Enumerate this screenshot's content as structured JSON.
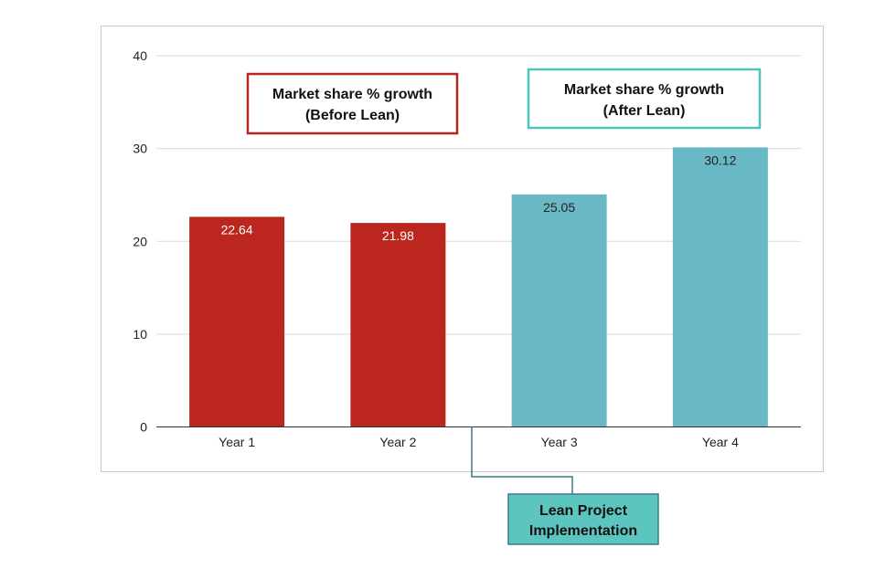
{
  "chart_data": {
    "type": "bar",
    "title": "",
    "xlabel": "",
    "ylabel": "",
    "ylim": [
      0,
      40
    ],
    "yticks": [
      0,
      10,
      20,
      30,
      40
    ],
    "categories": [
      "Year 1",
      "Year 2",
      "Year 3",
      "Year 4"
    ],
    "values": [
      22.64,
      21.98,
      25.05,
      30.12
    ],
    "value_labels": [
      "22.64",
      "21.98",
      "25.05",
      "30.12"
    ],
    "grid": true,
    "annotations": {
      "before": {
        "line1": "Market share % growth",
        "line2": "(Before Lean)"
      },
      "after": {
        "line1": "Market share % growth",
        "line2": "(After Lean)"
      },
      "implementation": {
        "line1": "Lean Project",
        "line2": "Implementation"
      }
    }
  },
  "colors": {
    "before": "#bb261e",
    "after": "#68b9c5",
    "before_border": "#b3261e",
    "after_border": "#4fc4bd",
    "implementation_fill": "#5cc5bf",
    "implementation_border": "#3c7a8a",
    "grid": "#d9d9d9",
    "axis": "#333333"
  }
}
